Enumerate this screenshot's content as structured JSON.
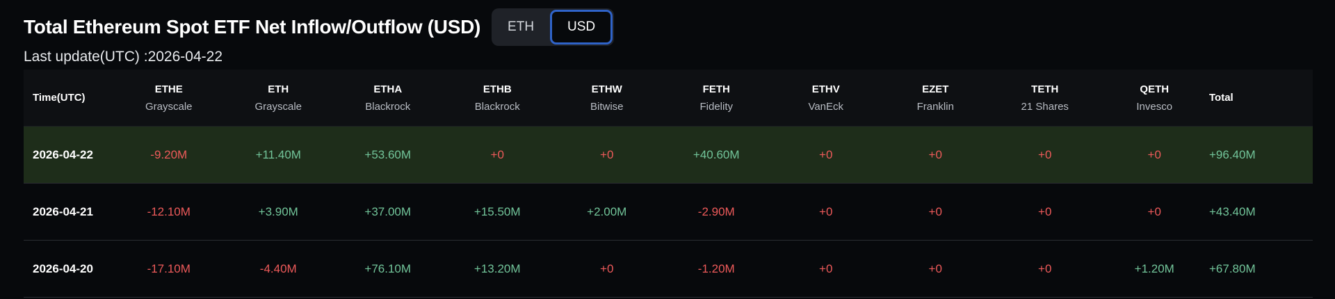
{
  "header": {
    "title": "Total Ethereum Spot ETF Net Inflow/Outflow (USD)",
    "toggle": {
      "eth_label": "ETH",
      "usd_label": "USD",
      "selected": "USD"
    },
    "last_update": "Last update(UTC) :2026-04-22"
  },
  "colors": {
    "positive": "#72c59a",
    "negative": "#ee5a5a",
    "highlight_row": "#1e2d1a",
    "toggle_border": "#2f63c9"
  },
  "table": {
    "time_header": "Time(UTC)",
    "total_header": "Total",
    "columns": [
      {
        "ticker": "ETHE",
        "issuer": "Grayscale"
      },
      {
        "ticker": "ETH",
        "issuer": "Grayscale"
      },
      {
        "ticker": "ETHA",
        "issuer": "Blackrock"
      },
      {
        "ticker": "ETHB",
        "issuer": "Blackrock"
      },
      {
        "ticker": "ETHW",
        "issuer": "Bitwise"
      },
      {
        "ticker": "FETH",
        "issuer": "Fidelity"
      },
      {
        "ticker": "ETHV",
        "issuer": "VanEck"
      },
      {
        "ticker": "EZET",
        "issuer": "Franklin"
      },
      {
        "ticker": "TETH",
        "issuer": "21 Shares"
      },
      {
        "ticker": "QETH",
        "issuer": "Invesco"
      }
    ],
    "rows": [
      {
        "date": "2026-04-22",
        "highlight": true,
        "values": [
          "-9.20M",
          "+11.40M",
          "+53.60M",
          "+0",
          "+0",
          "+40.60M",
          "+0",
          "+0",
          "+0",
          "+0"
        ],
        "total": "+96.40M"
      },
      {
        "date": "2026-04-21",
        "highlight": false,
        "values": [
          "-12.10M",
          "+3.90M",
          "+37.00M",
          "+15.50M",
          "+2.00M",
          "-2.90M",
          "+0",
          "+0",
          "+0",
          "+0"
        ],
        "total": "+43.40M"
      },
      {
        "date": "2026-04-20",
        "highlight": false,
        "values": [
          "-17.10M",
          "-4.40M",
          "+76.10M",
          "+13.20M",
          "+0",
          "-1.20M",
          "+0",
          "+0",
          "+0",
          "+1.20M"
        ],
        "total": "+67.80M"
      }
    ]
  }
}
